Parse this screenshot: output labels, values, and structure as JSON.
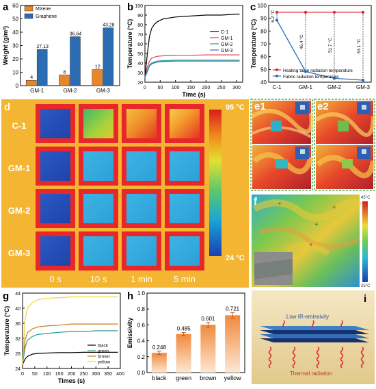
{
  "colors": {
    "mxene": "#E8862A",
    "graphene": "#2B6CB3",
    "c1": "#000000",
    "gm1": "#E8424A",
    "gm2": "#1F9E8E",
    "gm3": "#2F6FB8",
    "red_line": "#E02A34",
    "blue_line": "#2F6FB8",
    "black": "#000000",
    "green": "#1F9E8E",
    "brown": "#C97A1A",
    "yellow": "#F2D23A",
    "bar_h": "#F08A3C",
    "panel_d_bg": "#F4B533"
  },
  "panels": {
    "a": {
      "letter": "a"
    },
    "b": {
      "letter": "b"
    },
    "c": {
      "letter": "c"
    },
    "d": {
      "letter": "d",
      "rows": [
        "C-1",
        "GM-1",
        "GM-2",
        "GM-3"
      ],
      "times": [
        "0 s",
        "10 s",
        "1 min",
        "5 min"
      ],
      "scale_max": "95 °C",
      "scale_min": "24 °C"
    },
    "e1": {
      "letter": "e1"
    },
    "e2": {
      "letter": "e2"
    },
    "f": {
      "letter": "f",
      "scale_max": "45°C",
      "scale_min": "25°C"
    },
    "g": {
      "letter": "g"
    },
    "h": {
      "letter": "h"
    },
    "i": {
      "letter": "i",
      "top_label": "Low IR-emissivity",
      "bottom_label": "Thermal radiation"
    }
  },
  "chart_data": [
    {
      "id": "a",
      "type": "bar",
      "categories": [
        "GM-1",
        "GM-2",
        "GM-3"
      ],
      "series": [
        {
          "name": "MXene",
          "values": [
            4,
            8,
            12
          ]
        },
        {
          "name": "Graphene",
          "values": [
            27.13,
            36.64,
            43.28
          ]
        }
      ],
      "value_labels": {
        "MXene": [
          "4",
          "8",
          "12"
        ],
        "Graphene": [
          "27.13",
          "36.64",
          "43.28"
        ]
      },
      "ylabel": "Weight (g/m²)",
      "ylim": [
        0,
        60
      ],
      "yticks": [
        0,
        10,
        20,
        30,
        40,
        50,
        60
      ],
      "legend": "top-left"
    },
    {
      "id": "b",
      "type": "line",
      "xlabel": "Time (s)",
      "ylabel": "Temperature (°C)",
      "xlim": [
        0,
        320
      ],
      "ylim": [
        20,
        100
      ],
      "xticks": [
        0,
        50,
        100,
        150,
        200,
        250,
        300
      ],
      "yticks": [
        20,
        30,
        40,
        50,
        60,
        70,
        80,
        90,
        100
      ],
      "legend": "right",
      "series": [
        {
          "name": "C-1",
          "x": [
            0,
            8,
            15,
            22,
            30,
            40,
            60,
            100,
            150,
            200,
            250,
            300,
            310
          ],
          "y": [
            25,
            50,
            68,
            76,
            80,
            83,
            86,
            88,
            89,
            90,
            90,
            91,
            91
          ]
        },
        {
          "name": "GM-1",
          "x": [
            0,
            8,
            15,
            22,
            30,
            40,
            60,
            100,
            150,
            200,
            250,
            300,
            310
          ],
          "y": [
            25,
            36,
            42,
            45,
            46,
            47,
            47.5,
            48,
            48,
            48.5,
            48.5,
            48.5,
            48.5
          ]
        },
        {
          "name": "GM-2",
          "x": [
            0,
            8,
            15,
            22,
            30,
            40,
            60,
            100,
            150,
            200,
            250,
            300,
            310
          ],
          "y": [
            25,
            32,
            38,
            40,
            41,
            42,
            42.5,
            43,
            43,
            43,
            43,
            43,
            43
          ]
        },
        {
          "name": "GM-3",
          "x": [
            0,
            8,
            15,
            22,
            30,
            40,
            60,
            100,
            150,
            200,
            250,
            300,
            310
          ],
          "y": [
            25,
            31,
            37,
            39,
            40,
            41,
            41.5,
            42,
            42,
            42,
            42,
            42,
            42
          ]
        }
      ]
    },
    {
      "id": "c",
      "type": "line",
      "categories": [
        "C-1",
        "GM-1",
        "GM-2",
        "GM-3"
      ],
      "ylabel": "Temperature (°C)",
      "ylim": [
        40,
        100
      ],
      "yticks": [
        40,
        50,
        60,
        70,
        80,
        90,
        100
      ],
      "legend": "bottom-right",
      "series": [
        {
          "name": "Heating table radiation temperature",
          "values": [
            94.7,
            94.7,
            94.7,
            94.7
          ]
        },
        {
          "name": "Fabric radiation temperature",
          "values": [
            88.5,
            48.3,
            43,
            41.6
          ]
        }
      ],
      "annotations": [
        "6.2 °C",
        "46.4 °C",
        "51.7 °C",
        "53.1 °C"
      ]
    },
    {
      "id": "g",
      "type": "line",
      "xlabel": "Times (s)",
      "ylabel": "Temperature (°C)",
      "xlim": [
        0,
        400
      ],
      "ylim": [
        24,
        44
      ],
      "xticks": [
        0,
        50,
        100,
        150,
        200,
        250,
        300,
        350,
        400
      ],
      "yticks": [
        24,
        28,
        32,
        36,
        40,
        44
      ],
      "legend": "bottom-right",
      "series": [
        {
          "name": "black",
          "x": [
            0,
            10,
            20,
            40,
            60,
            100,
            150,
            200,
            250,
            300,
            350,
            390
          ],
          "y": [
            25,
            26.5,
            27.2,
            27.8,
            28.0,
            28.1,
            28.2,
            28.2,
            28.3,
            28.3,
            28.3,
            28.3
          ]
        },
        {
          "name": "green",
          "x": [
            0,
            10,
            20,
            40,
            60,
            100,
            150,
            200,
            250,
            300,
            350,
            390
          ],
          "y": [
            25,
            29.5,
            31.5,
            32.5,
            33.0,
            33.3,
            33.6,
            33.8,
            33.8,
            34.0,
            34.0,
            34.0
          ]
        },
        {
          "name": "brown",
          "x": [
            0,
            10,
            20,
            40,
            60,
            100,
            150,
            200,
            250,
            300,
            350,
            390
          ],
          "y": [
            25,
            31.5,
            33.5,
            34.5,
            35.0,
            35.3,
            35.5,
            35.8,
            35.8,
            35.8,
            35.8,
            35.8
          ]
        },
        {
          "name": "yellow",
          "x": [
            0,
            10,
            20,
            40,
            60,
            100,
            150,
            200,
            250,
            300,
            350,
            390
          ],
          "y": [
            25,
            37,
            40,
            41.5,
            42.2,
            42.6,
            42.8,
            43.0,
            43.0,
            43.0,
            43.0,
            43.0
          ]
        }
      ]
    },
    {
      "id": "h",
      "type": "bar",
      "categories": [
        "black",
        "green",
        "brown",
        "yellow"
      ],
      "values": [
        0.248,
        0.485,
        0.601,
        0.721
      ],
      "errors": [
        0.02,
        0.02,
        0.03,
        0.035
      ],
      "value_labels": [
        "0.248",
        "0.485",
        "0.601",
        "0.721"
      ],
      "ylabel": "Emissivity",
      "ylim": [
        0,
        1.0
      ],
      "yticks": [
        0.0,
        0.2,
        0.4,
        0.6,
        0.8,
        1.0
      ]
    }
  ]
}
